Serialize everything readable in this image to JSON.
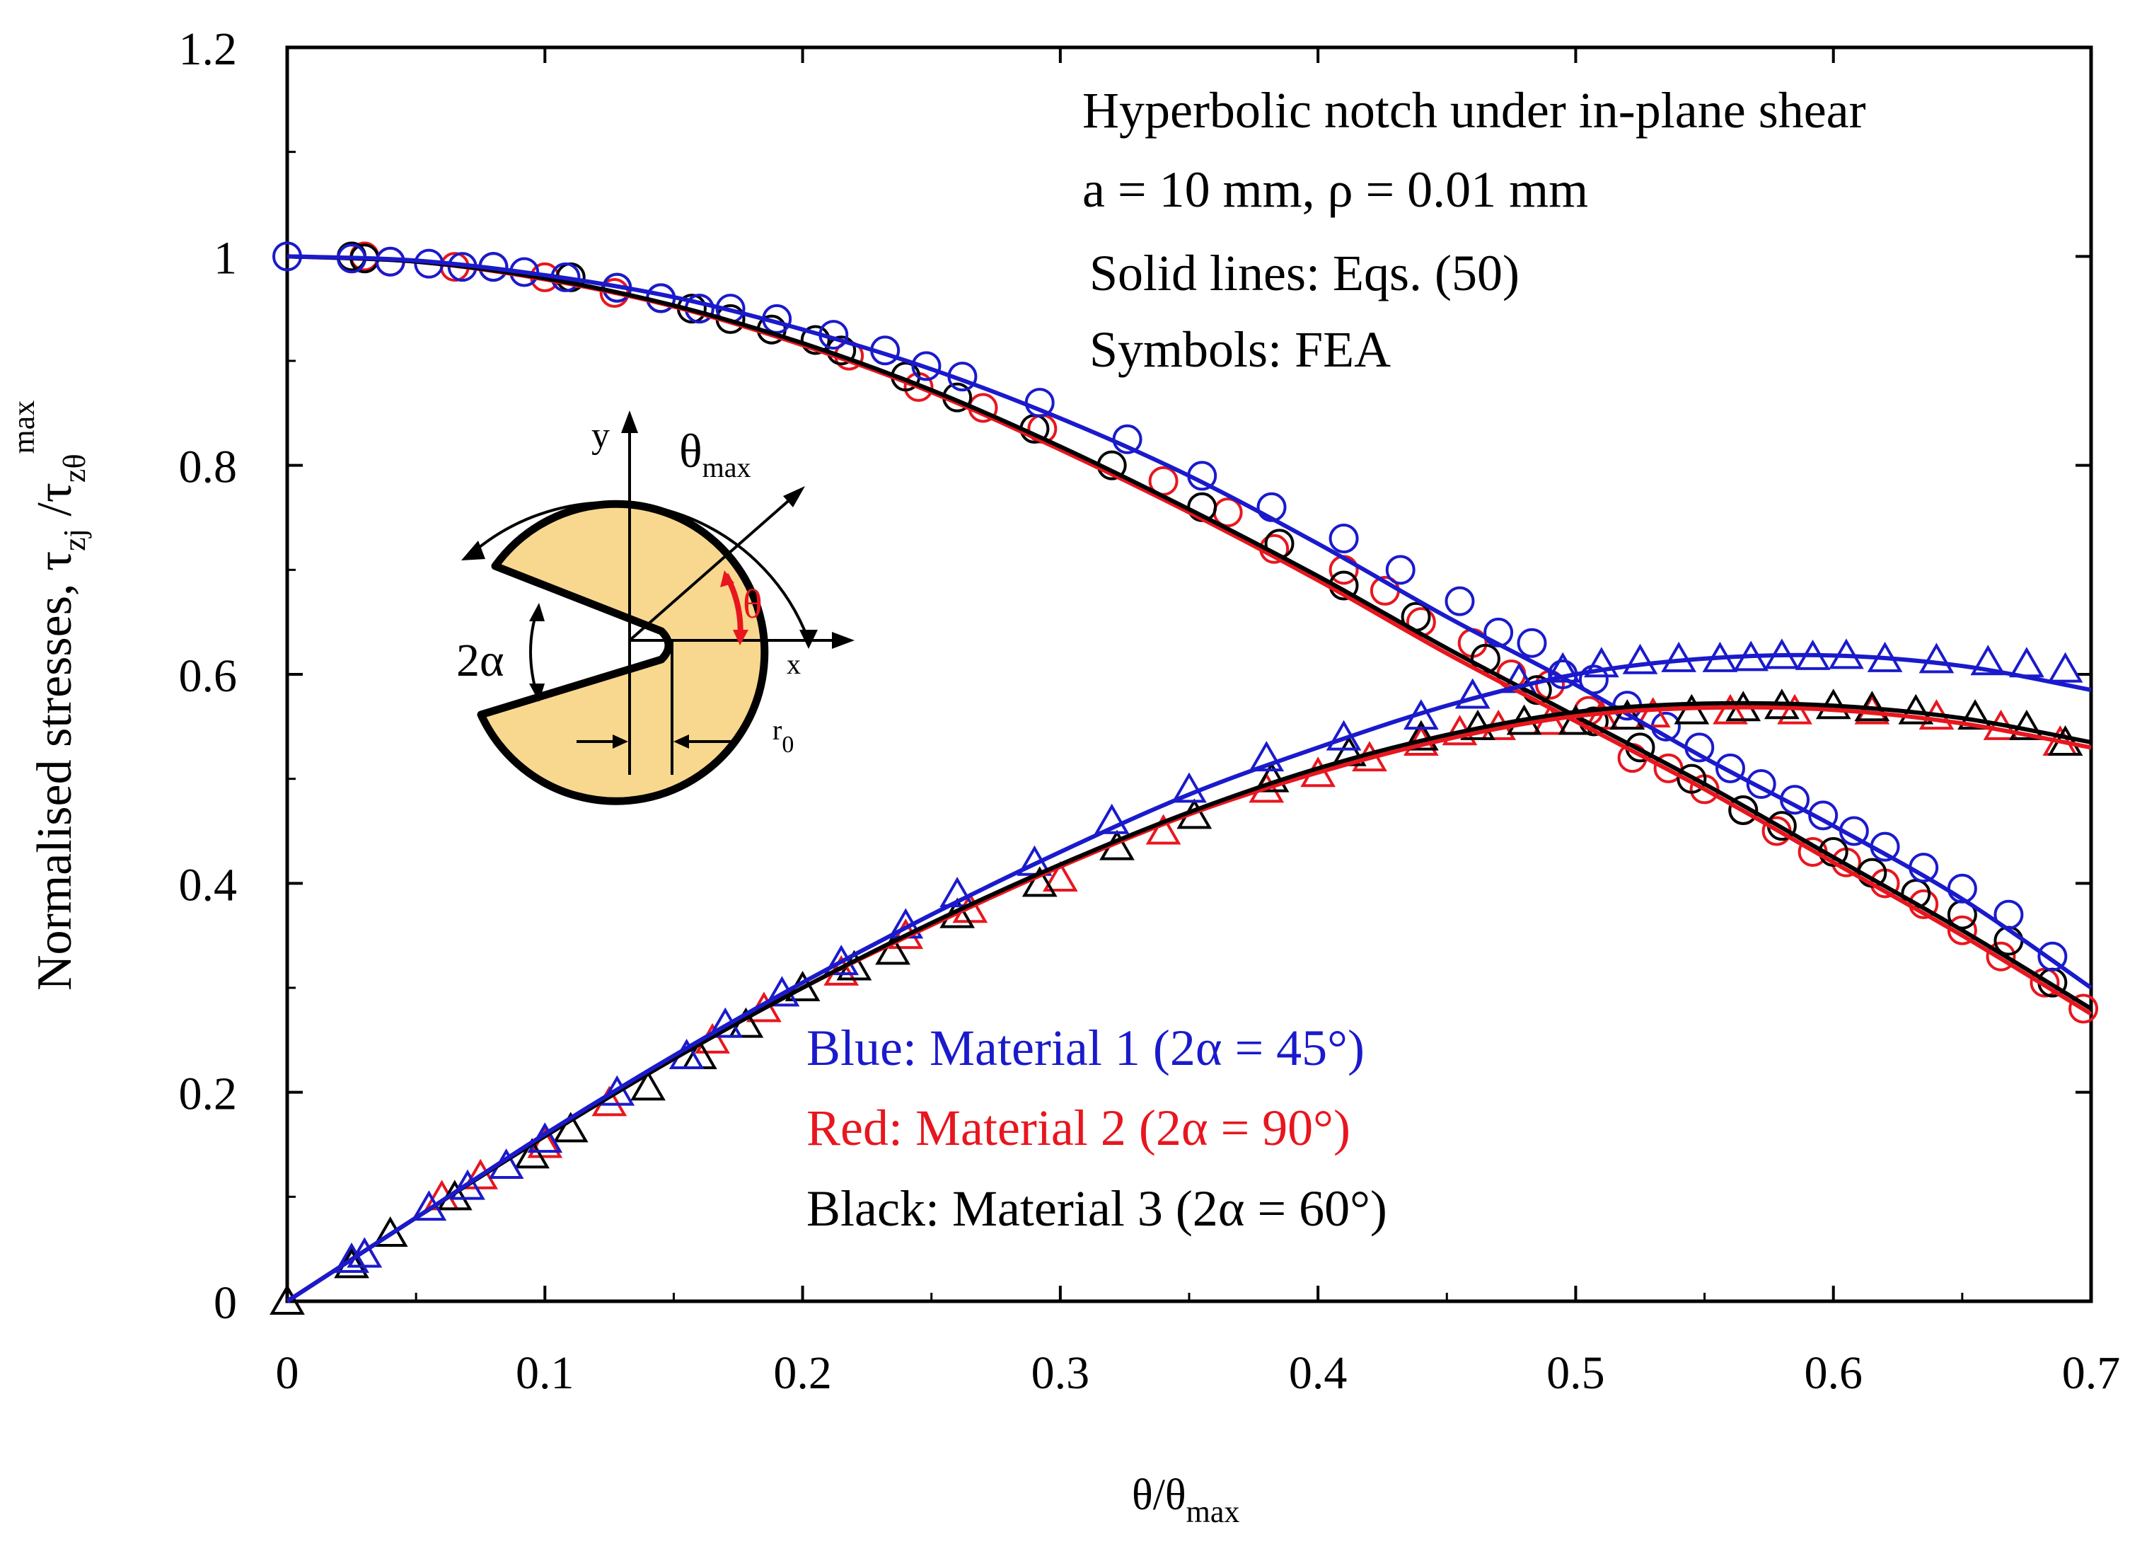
{
  "chart_data": {
    "type": "line",
    "title": "Hyperbolic notch under in-plane shear",
    "annotations": {
      "title": "Hyperbolic notch under in-plane shear",
      "params": "a = 10 mm, ρ = 0.01 mm",
      "lines_note": "Solid lines: Eqs. (50)",
      "symbols_note": "Symbols: FEA"
    },
    "xlabel": {
      "main": "θ/θ",
      "sub": "max"
    },
    "ylabel": {
      "main": "Normalised stresses, τ",
      "sub1": "zj",
      "mid": " /τ",
      "sub2": "zθ",
      "sup": "max"
    },
    "xlim": [
      0,
      0.7
    ],
    "ylim": [
      0,
      1.2
    ],
    "xticks": [
      0,
      0.1,
      0.2,
      0.3,
      0.4,
      0.5,
      0.6,
      0.7
    ],
    "xtick_labels": [
      "0",
      "0.1",
      "0.2",
      "0.3",
      "0.4",
      "0.5",
      "0.6",
      "0.7"
    ],
    "yticks": [
      0,
      0.2,
      0.4,
      0.6,
      0.8,
      1.0,
      1.2
    ],
    "ytick_labels": [
      "0",
      "0.2",
      "0.4",
      "0.6",
      "0.8",
      "1",
      "1.2"
    ],
    "legend": {
      "placement": "lower-center",
      "entries": [
        {
          "text": "Blue: Material 1 (2α = 45°)",
          "color": "#1a1acc"
        },
        {
          "text": "Red: Material 2 (2α = 90°)",
          "color": "#e8161e"
        },
        {
          "text": "Black: Material 3 (2α = 60°)",
          "color": "#000000"
        }
      ]
    },
    "series": [
      {
        "name": "Material 1 τzθ/τzθmax",
        "material": "Material 1",
        "component": "zθ",
        "color": "#1a1acc",
        "marker": "circle",
        "line": {
          "x": [
            0,
            0.05,
            0.1,
            0.15,
            0.2,
            0.25,
            0.3,
            0.35,
            0.4,
            0.45,
            0.5,
            0.55,
            0.6,
            0.65,
            0.7
          ],
          "y": [
            1.0,
            0.996,
            0.982,
            0.961,
            0.93,
            0.892,
            0.845,
            0.79,
            0.725,
            0.655,
            0.59,
            0.52,
            0.455,
            0.385,
            0.3
          ]
        },
        "fea": {
          "x": [
            0,
            0.025,
            0.04,
            0.055,
            0.068,
            0.08,
            0.092,
            0.108,
            0.128,
            0.145,
            0.16,
            0.172,
            0.19,
            0.212,
            0.232,
            0.248,
            0.262,
            0.292,
            0.326,
            0.355,
            0.382,
            0.41,
            0.432,
            0.455,
            0.47,
            0.483,
            0.495,
            0.507,
            0.52,
            0.535,
            0.548,
            0.56,
            0.572,
            0.585,
            0.596,
            0.608,
            0.62,
            0.635,
            0.65,
            0.668,
            0.685
          ],
          "y": [
            1.0,
            0.998,
            0.995,
            0.993,
            0.99,
            0.99,
            0.985,
            0.98,
            0.97,
            0.96,
            0.95,
            0.95,
            0.94,
            0.925,
            0.91,
            0.895,
            0.885,
            0.86,
            0.825,
            0.79,
            0.76,
            0.73,
            0.7,
            0.67,
            0.64,
            0.63,
            0.6,
            0.595,
            0.57,
            0.55,
            0.53,
            0.51,
            0.495,
            0.48,
            0.465,
            0.45,
            0.435,
            0.415,
            0.395,
            0.37,
            0.33
          ]
        }
      },
      {
        "name": "Material 2 τzθ/τzθmax",
        "material": "Material 2",
        "component": "zθ",
        "color": "#e8161e",
        "marker": "circle",
        "line": {
          "x": [
            0,
            0.05,
            0.1,
            0.15,
            0.2,
            0.25,
            0.3,
            0.35,
            0.4,
            0.45,
            0.5,
            0.55,
            0.6,
            0.65,
            0.7
          ],
          "y": [
            1.0,
            0.995,
            0.978,
            0.952,
            0.915,
            0.87,
            0.815,
            0.755,
            0.69,
            0.62,
            0.555,
            0.49,
            0.42,
            0.35,
            0.275
          ]
        },
        "fea": {
          "x": [
            0.03,
            0.04,
            0.065,
            0.1,
            0.127,
            0.16,
            0.188,
            0.218,
            0.245,
            0.27,
            0.293,
            0.34,
            0.365,
            0.383,
            0.41,
            0.426,
            0.44,
            0.46,
            0.475,
            0.49,
            0.505,
            0.522,
            0.536,
            0.55,
            0.565,
            0.578,
            0.592,
            0.605,
            0.62,
            0.635,
            0.65,
            0.665,
            0.682,
            0.697
          ],
          "y": [
            1.0,
            0.995,
            0.99,
            0.98,
            0.965,
            0.95,
            0.93,
            0.905,
            0.875,
            0.855,
            0.835,
            0.785,
            0.755,
            0.72,
            0.7,
            0.68,
            0.65,
            0.63,
            0.6,
            0.59,
            0.565,
            0.52,
            0.51,
            0.49,
            0.47,
            0.45,
            0.43,
            0.42,
            0.4,
            0.38,
            0.355,
            0.33,
            0.305,
            0.28
          ]
        }
      },
      {
        "name": "Material 3 τzθ/τzθmax",
        "material": "Material 3",
        "component": "zθ",
        "color": "#000000",
        "marker": "circle",
        "line": {
          "x": [
            0,
            0.05,
            0.1,
            0.15,
            0.2,
            0.25,
            0.3,
            0.35,
            0.4,
            0.45,
            0.5,
            0.55,
            0.6,
            0.65,
            0.7
          ],
          "y": [
            1.0,
            0.995,
            0.979,
            0.953,
            0.917,
            0.872,
            0.818,
            0.758,
            0.694,
            0.625,
            0.56,
            0.495,
            0.425,
            0.355,
            0.28
          ]
        },
        "fea": {
          "x": [
            0.025,
            0.03,
            0.08,
            0.11,
            0.128,
            0.145,
            0.157,
            0.172,
            0.188,
            0.205,
            0.215,
            0.24,
            0.26,
            0.29,
            0.32,
            0.355,
            0.385,
            0.41,
            0.438,
            0.465,
            0.485,
            0.507,
            0.525,
            0.545,
            0.565,
            0.58,
            0.6,
            0.615,
            0.632,
            0.65,
            0.668,
            0.685
          ],
          "y": [
            1.0,
            0.998,
            0.99,
            0.98,
            0.97,
            0.96,
            0.95,
            0.94,
            0.93,
            0.92,
            0.91,
            0.885,
            0.865,
            0.835,
            0.8,
            0.76,
            0.725,
            0.685,
            0.655,
            0.615,
            0.585,
            0.555,
            0.53,
            0.5,
            0.47,
            0.455,
            0.43,
            0.41,
            0.39,
            0.37,
            0.345,
            0.305
          ]
        }
      },
      {
        "name": "Material 1 τzr/τzθmax",
        "material": "Material 1",
        "component": "zr",
        "color": "#1a1acc",
        "marker": "triangle",
        "line": {
          "x": [
            0,
            0.05,
            0.1,
            0.15,
            0.2,
            0.25,
            0.3,
            0.35,
            0.4,
            0.45,
            0.5,
            0.55,
            0.6,
            0.65,
            0.7
          ],
          "y": [
            0,
            0.08,
            0.16,
            0.235,
            0.305,
            0.37,
            0.43,
            0.485,
            0.53,
            0.57,
            0.6,
            0.615,
            0.618,
            0.608,
            0.585
          ]
        },
        "fea": {
          "x": [
            0.025,
            0.03,
            0.055,
            0.07,
            0.085,
            0.1,
            0.128,
            0.155,
            0.17,
            0.192,
            0.215,
            0.24,
            0.26,
            0.29,
            0.32,
            0.35,
            0.38,
            0.41,
            0.44,
            0.46,
            0.478,
            0.495,
            0.51,
            0.525,
            0.54,
            0.556,
            0.568,
            0.58,
            0.592,
            0.605,
            0.62,
            0.64,
            0.66,
            0.675,
            0.69
          ],
          "y": [
            0.04,
            0.045,
            0.09,
            0.11,
            0.13,
            0.155,
            0.2,
            0.235,
            0.265,
            0.295,
            0.325,
            0.36,
            0.39,
            0.42,
            0.46,
            0.49,
            0.52,
            0.54,
            0.56,
            0.58,
            0.595,
            0.605,
            0.61,
            0.613,
            0.615,
            0.615,
            0.616,
            0.618,
            0.617,
            0.618,
            0.615,
            0.614,
            0.612,
            0.61,
            0.605
          ]
        }
      },
      {
        "name": "Material 2 τzr/τzθmax",
        "material": "Material 2",
        "component": "zr",
        "color": "#e8161e",
        "marker": "triangle",
        "line": {
          "x": [
            0,
            0.05,
            0.1,
            0.15,
            0.2,
            0.25,
            0.3,
            0.35,
            0.4,
            0.45,
            0.5,
            0.55,
            0.6,
            0.65,
            0.7
          ],
          "y": [
            0,
            0.08,
            0.158,
            0.232,
            0.3,
            0.36,
            0.416,
            0.466,
            0.506,
            0.538,
            0.56,
            0.568,
            0.566,
            0.553,
            0.53
          ]
        },
        "fea": {
          "x": [
            0.03,
            0.06,
            0.075,
            0.1,
            0.125,
            0.165,
            0.185,
            0.215,
            0.24,
            0.265,
            0.3,
            0.34,
            0.38,
            0.4,
            0.42,
            0.44,
            0.455,
            0.47,
            0.49,
            0.51,
            0.53,
            0.56,
            0.585,
            0.615,
            0.64,
            0.665,
            0.688
          ],
          "y": [
            0.045,
            0.1,
            0.12,
            0.15,
            0.19,
            0.25,
            0.28,
            0.315,
            0.35,
            0.375,
            0.405,
            0.45,
            0.49,
            0.505,
            0.52,
            0.535,
            0.545,
            0.55,
            0.555,
            0.56,
            0.562,
            0.565,
            0.565,
            0.565,
            0.56,
            0.55,
            0.535
          ]
        }
      },
      {
        "name": "Material 3 τzr/τzθmax",
        "material": "Material 3",
        "component": "zr",
        "color": "#000000",
        "marker": "triangle",
        "line": {
          "x": [
            0,
            0.05,
            0.1,
            0.15,
            0.2,
            0.25,
            0.3,
            0.35,
            0.4,
            0.45,
            0.5,
            0.55,
            0.6,
            0.65,
            0.7
          ],
          "y": [
            0,
            0.08,
            0.158,
            0.232,
            0.3,
            0.362,
            0.418,
            0.468,
            0.51,
            0.542,
            0.564,
            0.572,
            0.57,
            0.558,
            0.535
          ]
        },
        "fea": {
          "x": [
            0,
            0.025,
            0.04,
            0.065,
            0.095,
            0.11,
            0.14,
            0.16,
            0.178,
            0.2,
            0.22,
            0.235,
            0.26,
            0.292,
            0.322,
            0.352,
            0.382,
            0.412,
            0.44,
            0.462,
            0.48,
            0.5,
            0.52,
            0.545,
            0.565,
            0.58,
            0.6,
            0.615,
            0.632,
            0.655,
            0.675,
            0.69
          ],
          "y": [
            0,
            0.035,
            0.065,
            0.1,
            0.14,
            0.165,
            0.205,
            0.235,
            0.265,
            0.3,
            0.32,
            0.335,
            0.37,
            0.4,
            0.435,
            0.465,
            0.5,
            0.525,
            0.54,
            0.55,
            0.555,
            0.555,
            0.56,
            0.565,
            0.568,
            0.57,
            0.57,
            0.568,
            0.565,
            0.56,
            0.55,
            0.535
          ]
        }
      }
    ]
  },
  "inset": {
    "y_label": "y",
    "x_label": "x",
    "theta_max_label": {
      "main": "θ",
      "sub": "max"
    },
    "theta_label": "θ",
    "alpha_label": "2α",
    "r0_label": {
      "main": "r",
      "sub": "0"
    },
    "fill_color": "#f8d88f",
    "theta_color": "#e8161e"
  }
}
